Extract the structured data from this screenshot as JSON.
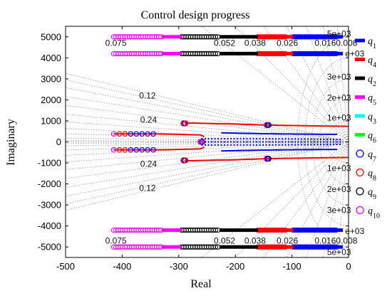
{
  "chart_data": {
    "type": "scatter",
    "title": "Control design progress",
    "xlabel": "Real",
    "ylabel": "Imaginary",
    "xlim": [
      -500,
      0
    ],
    "ylim": [
      -5500,
      5500
    ],
    "xticks": [
      -500,
      -400,
      -300,
      -200,
      -100,
      0
    ],
    "yticks": [
      -5000,
      -4000,
      -3000,
      -2000,
      -1000,
      0,
      1000,
      2000,
      3000,
      4000,
      5000
    ],
    "xtick_labels": [
      "-500",
      "-400",
      "-300",
      "-200",
      "-100",
      "0"
    ],
    "ytick_labels": [
      "-5000",
      "-4000",
      "-3000",
      "-2000",
      "-1000",
      "0",
      "1000",
      "2000",
      "3000",
      "4000",
      "5000"
    ],
    "grid": "s-plane damping/natural-frequency grid",
    "damping_labels": [
      {
        "text": "0.12",
        "zeta": 0.12,
        "y": 2200
      },
      {
        "text": "0.24",
        "zeta": 0.24,
        "y": 1050
      },
      {
        "text": "0.24",
        "zeta": 0.24,
        "y": -1050
      },
      {
        "text": "0.12",
        "zeta": 0.12,
        "y": -2200
      },
      {
        "text": "0.075",
        "x": -430,
        "y": 4700
      },
      {
        "text": "0.052",
        "x": -238,
        "y": 4700
      },
      {
        "text": "0.038",
        "x": -184,
        "y": 4700
      },
      {
        "text": "0.026",
        "x": -127,
        "y": 4700
      },
      {
        "text": "0.0160.008",
        "x": -60,
        "y": 4700
      },
      {
        "text": "0.075",
        "x": -430,
        "y": -4700
      },
      {
        "text": "0.052",
        "x": -238,
        "y": -4700
      },
      {
        "text": "0.038",
        "x": -184,
        "y": -4700
      },
      {
        "text": "0.026",
        "x": -127,
        "y": -4700
      },
      {
        "text": "0.0160.008",
        "x": -60,
        "y": -4700
      }
    ],
    "frequency_labels": [
      {
        "text": "5e+03",
        "y": 5150
      },
      {
        "text": "e+03",
        "y": 4200
      },
      {
        "text": "3e+03",
        "y": 3100
      },
      {
        "text": "2e+03",
        "y": 2100
      },
      {
        "text": "1e+03",
        "y": 1150
      },
      {
        "text": "1e+03",
        "y": -1250
      },
      {
        "text": "2e+03",
        "y": -2250
      },
      {
        "text": "3e+03",
        "y": -3250
      },
      {
        "text": "e+03",
        "y": -4250
      },
      {
        "text": "5e+03",
        "y": -5250
      }
    ],
    "legend_position": "right-outside",
    "series": [
      {
        "name": "q",
        "sub": "1",
        "color": "#0000ff",
        "marker": "line"
      },
      {
        "name": "q",
        "sub": "4",
        "color": "#ff0000",
        "marker": "line"
      },
      {
        "name": "q",
        "sub": "2",
        "color": "#000000",
        "marker": "line"
      },
      {
        "name": "q",
        "sub": "5",
        "color": "#ff00ff",
        "marker": "line"
      },
      {
        "name": "q",
        "sub": "3",
        "color": "#00ffff",
        "marker": "line"
      },
      {
        "name": "q",
        "sub": "6",
        "color": "#00ff00",
        "marker": "line"
      },
      {
        "name": "q",
        "sub": "7",
        "color": "#0000ff",
        "marker": "circle"
      },
      {
        "name": "q",
        "sub": "8",
        "color": "#ff0000",
        "marker": "circle"
      },
      {
        "name": "q",
        "sub": "9",
        "color": "#000000",
        "marker": "circle"
      },
      {
        "name": "q",
        "sub": "10",
        "color": "#ff00ff",
        "marker": "circle"
      }
    ],
    "pole_tracks": [
      {
        "y": 5000,
        "segments": [
          {
            "color": "#ff00ff",
            "x0": -330,
            "x1": -295
          },
          {
            "color": "#000000",
            "x0": -228,
            "x1": -160
          },
          {
            "color": "#ff0000",
            "x0": -160,
            "x1": -98
          },
          {
            "color": "#0000ff",
            "x0": -98,
            "x1": -10
          }
        ],
        "circles": [
          {
            "color": "#ff00ff",
            "x0": -415,
            "x1": -330
          },
          {
            "color": "#000000",
            "x0": -295,
            "x1": -228
          },
          {
            "color": "#ff0000",
            "x0": -160,
            "x1": -110
          },
          {
            "color": "#0000ff",
            "x0": -98,
            "x1": -20
          }
        ]
      },
      {
        "y": 4200,
        "segments": [
          {
            "color": "#ff00ff",
            "x0": -330,
            "x1": -295
          },
          {
            "color": "#000000",
            "x0": -228,
            "x1": -160
          },
          {
            "color": "#ff0000",
            "x0": -160,
            "x1": -98
          },
          {
            "color": "#0000ff",
            "x0": -98,
            "x1": -10
          }
        ],
        "circles": [
          {
            "color": "#ff00ff",
            "x0": -415,
            "x1": -330
          },
          {
            "color": "#000000",
            "x0": -295,
            "x1": -228
          },
          {
            "color": "#ff0000",
            "x0": -160,
            "x1": -110
          },
          {
            "color": "#0000ff",
            "x0": -98,
            "x1": -20
          }
        ]
      },
      {
        "y": -4200,
        "segments": [
          {
            "color": "#ff00ff",
            "x0": -330,
            "x1": -295
          },
          {
            "color": "#000000",
            "x0": -228,
            "x1": -160
          },
          {
            "color": "#ff0000",
            "x0": -160,
            "x1": -98
          },
          {
            "color": "#0000ff",
            "x0": -98,
            "x1": -10
          }
        ],
        "circles": [
          {
            "color": "#ff00ff",
            "x0": -415,
            "x1": -330
          },
          {
            "color": "#000000",
            "x0": -295,
            "x1": -228
          },
          {
            "color": "#ff0000",
            "x0": -160,
            "x1": -110
          },
          {
            "color": "#0000ff",
            "x0": -98,
            "x1": -20
          }
        ]
      },
      {
        "y": -5000,
        "segments": [
          {
            "color": "#ff00ff",
            "x0": -330,
            "x1": -295
          },
          {
            "color": "#000000",
            "x0": -228,
            "x1": -160
          },
          {
            "color": "#ff0000",
            "x0": -160,
            "x1": -98
          },
          {
            "color": "#0000ff",
            "x0": -98,
            "x1": -10
          }
        ],
        "circles": [
          {
            "color": "#ff00ff",
            "x0": -415,
            "x1": -330
          },
          {
            "color": "#000000",
            "x0": -295,
            "x1": -228
          },
          {
            "color": "#ff0000",
            "x0": -160,
            "x1": -110
          },
          {
            "color": "#0000ff",
            "x0": -98,
            "x1": -20
          }
        ]
      }
    ],
    "center_tracks": [
      {
        "points": [
          [
            -415,
            380
          ],
          [
            -345,
            380
          ],
          [
            -300,
            360
          ],
          [
            -262,
            330
          ],
          [
            -255,
            250
          ]
        ],
        "circles_x": [
          -415,
          -405,
          -395,
          -385,
          -375,
          -365,
          -355,
          -345
        ],
        "colors": [
          "#ff00ff",
          "#ff0000",
          "#ff0000",
          "#0000ff",
          "#0000ff",
          "#0000ff",
          "#0000ff",
          "#0000ff"
        ]
      },
      {
        "points": [
          [
            -415,
            -380
          ],
          [
            -345,
            -380
          ],
          [
            -300,
            -360
          ],
          [
            -262,
            -330
          ],
          [
            -255,
            -250
          ]
        ],
        "circles_x": [
          -415,
          -405,
          -395,
          -385,
          -375,
          -365,
          -355,
          -345
        ],
        "colors": [
          "#ff00ff",
          "#ff0000",
          "#ff0000",
          "#0000ff",
          "#0000ff",
          "#0000ff",
          "#0000ff",
          "#0000ff"
        ]
      },
      {
        "points": [
          [
            -260,
            0
          ],
          [
            -200,
            0
          ],
          [
            -100,
            0
          ],
          [
            -10,
            0
          ]
        ],
        "dotted": true,
        "color": "#0000ff"
      },
      {
        "points": [
          [
            -260,
            150
          ],
          [
            -150,
            150
          ],
          [
            -10,
            120
          ]
        ],
        "dotted": true,
        "color": "#0000ff"
      },
      {
        "points": [
          [
            -260,
            -150
          ],
          [
            -150,
            -150
          ],
          [
            -10,
            -120
          ]
        ],
        "dotted": true,
        "color": "#0000ff"
      },
      {
        "points": [
          [
            -225,
            430
          ],
          [
            -150,
            390
          ],
          [
            -80,
            370
          ],
          [
            -20,
            360
          ]
        ],
        "color": "#0000ff"
      },
      {
        "points": [
          [
            -225,
            -430
          ],
          [
            -150,
            -390
          ],
          [
            -80,
            -370
          ],
          [
            -20,
            -360
          ]
        ],
        "color": "#0000ff"
      },
      {
        "points": [
          [
            -290,
            900
          ],
          [
            -200,
            850
          ],
          [
            -145,
            800
          ],
          [
            -60,
            760
          ],
          [
            0,
            740
          ]
        ],
        "color": "#ff0000"
      },
      {
        "points": [
          [
            -290,
            -900
          ],
          [
            -200,
            -850
          ],
          [
            -145,
            -800
          ],
          [
            -60,
            -760
          ],
          [
            0,
            -740
          ]
        ],
        "color": "#ff0000"
      }
    ],
    "circle_clusters": [
      {
        "x": -292,
        "y": 880,
        "colors": [
          "#ff00ff",
          "#000000",
          "#ff0000"
        ]
      },
      {
        "x": -145,
        "y": 800,
        "colors": [
          "#ff00ff",
          "#000000",
          "#0000ff"
        ]
      },
      {
        "x": -292,
        "y": -880,
        "colors": [
          "#ff00ff",
          "#000000",
          "#ff0000"
        ]
      },
      {
        "x": -145,
        "y": -800,
        "colors": [
          "#ff00ff",
          "#000000",
          "#0000ff"
        ]
      },
      {
        "x": -262,
        "y": 0,
        "colors": [
          "#ff00ff",
          "#ff0000",
          "#0000ff"
        ]
      }
    ]
  }
}
